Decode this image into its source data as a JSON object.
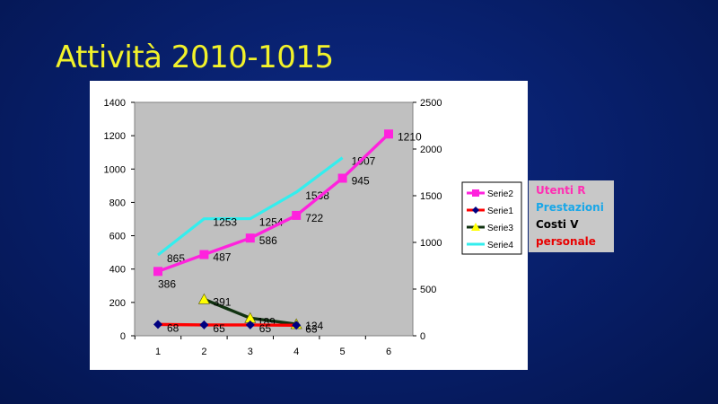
{
  "slide": {
    "title": "Attività 2010-1015"
  },
  "side_legend": [
    {
      "label": "Utenti R",
      "color": "#ff2fb3"
    },
    {
      "label": "Prestazioni",
      "color": "#19a7e8"
    },
    {
      "label": "Costi V",
      "color": "#000000"
    },
    {
      "label": "personale",
      "color": "#e80000"
    }
  ],
  "chart_data": {
    "type": "line",
    "x": [
      1,
      2,
      3,
      4,
      5,
      6
    ],
    "x_ticks": [
      "1",
      "2",
      "3",
      "4",
      "5",
      "6"
    ],
    "y_left": {
      "range": [
        0,
        1400
      ],
      "ticks": [
        "0",
        "200",
        "400",
        "600",
        "800",
        "1000",
        "1200",
        "1400"
      ]
    },
    "y_right": {
      "range": [
        0,
        2500
      ],
      "ticks": [
        "0",
        "500",
        "1000",
        "1500",
        "2000",
        "2500"
      ]
    },
    "grid": false,
    "legend_position": "right",
    "series": [
      {
        "name": "Serie2",
        "axis": "left",
        "color": "#ff22dd",
        "marker": "square",
        "x": [
          1,
          2,
          3,
          4,
          5,
          6
        ],
        "values": [
          386,
          487,
          586,
          722,
          945,
          1210
        ],
        "labels": [
          "386",
          "487",
          "586",
          "722",
          "945",
          "1210"
        ]
      },
      {
        "name": "Serie1",
        "axis": "left",
        "color": "#ff0000",
        "marker": "diamond",
        "x": [
          1,
          2,
          3,
          4
        ],
        "values": [
          68,
          65,
          65,
          63
        ],
        "labels": [
          "68",
          "65",
          "65",
          "63"
        ]
      },
      {
        "name": "Serie3",
        "axis": "right",
        "color": "#113311",
        "marker": "triangle",
        "x": [
          2,
          3,
          4
        ],
        "values": [
          391,
          189,
          124
        ],
        "labels": [
          "391",
          "189",
          "124"
        ]
      },
      {
        "name": "Serie4",
        "axis": "right",
        "color": "#33eeee",
        "marker": "none",
        "x": [
          1,
          2,
          3,
          4,
          5
        ],
        "values": [
          865,
          1253,
          1254,
          1538,
          1907
        ],
        "labels": [
          "865",
          "1253",
          "1254",
          "1538",
          "1907"
        ]
      }
    ]
  }
}
